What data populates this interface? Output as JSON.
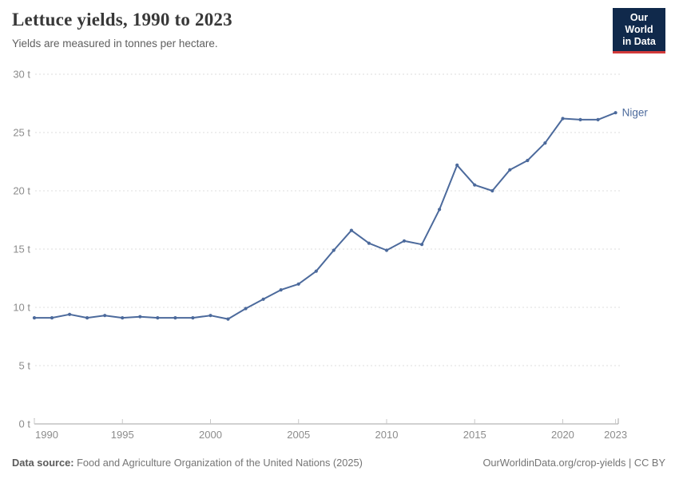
{
  "header": {
    "title": "Lettuce yields, 1990 to 2023",
    "subtitle": "Yields are measured in tonnes per hectare."
  },
  "logo": {
    "line1": "Our World",
    "line2": "in Data",
    "bg_color": "#10294b",
    "bar_color": "#d23a3a"
  },
  "chart_data": {
    "type": "line",
    "title": "Lettuce yields, 1990 to 2023",
    "ylabel": "tonnes per hectare",
    "xlabel": "",
    "ylim": [
      0,
      30
    ],
    "xlim": [
      1990,
      2023
    ],
    "grid": "horizontal-dashed",
    "legend_position": "end-of-line",
    "x": [
      1990,
      1991,
      1992,
      1993,
      1994,
      1995,
      1996,
      1997,
      1998,
      1999,
      2000,
      2001,
      2002,
      2003,
      2004,
      2005,
      2006,
      2007,
      2008,
      2009,
      2010,
      2011,
      2012,
      2013,
      2014,
      2015,
      2016,
      2017,
      2018,
      2019,
      2020,
      2021,
      2022,
      2023
    ],
    "series": [
      {
        "name": "Niger",
        "color": "#4c6a9c",
        "values": [
          9.1,
          9.1,
          9.4,
          9.1,
          9.3,
          9.1,
          9.2,
          9.1,
          9.1,
          9.1,
          9.3,
          9.0,
          9.9,
          10.7,
          11.5,
          12.0,
          13.1,
          14.9,
          16.6,
          15.5,
          14.9,
          15.7,
          15.4,
          18.4,
          22.2,
          20.5,
          20.0,
          21.8,
          22.6,
          24.1,
          26.2,
          26.1,
          26.1,
          26.7
        ]
      }
    ],
    "yticks": [
      {
        "value": 0,
        "label": "0 t"
      },
      {
        "value": 5,
        "label": "5 t"
      },
      {
        "value": 10,
        "label": "10 t"
      },
      {
        "value": 15,
        "label": "15 t"
      },
      {
        "value": 20,
        "label": "20 t"
      },
      {
        "value": 25,
        "label": "25 t"
      },
      {
        "value": 30,
        "label": "30 t"
      }
    ],
    "xticks": [
      {
        "value": 1990,
        "label": "1990"
      },
      {
        "value": 1995,
        "label": "1995"
      },
      {
        "value": 2000,
        "label": "2000"
      },
      {
        "value": 2005,
        "label": "2005"
      },
      {
        "value": 2010,
        "label": "2010"
      },
      {
        "value": 2015,
        "label": "2015"
      },
      {
        "value": 2020,
        "label": "2020"
      },
      {
        "value": 2023,
        "label": "2023"
      }
    ]
  },
  "footer": {
    "source_label": "Data source:",
    "source_text": " Food and Agriculture Organization of the United Nations (2025)",
    "credit": "OurWorldinData.org/crop-yields | CC BY"
  }
}
